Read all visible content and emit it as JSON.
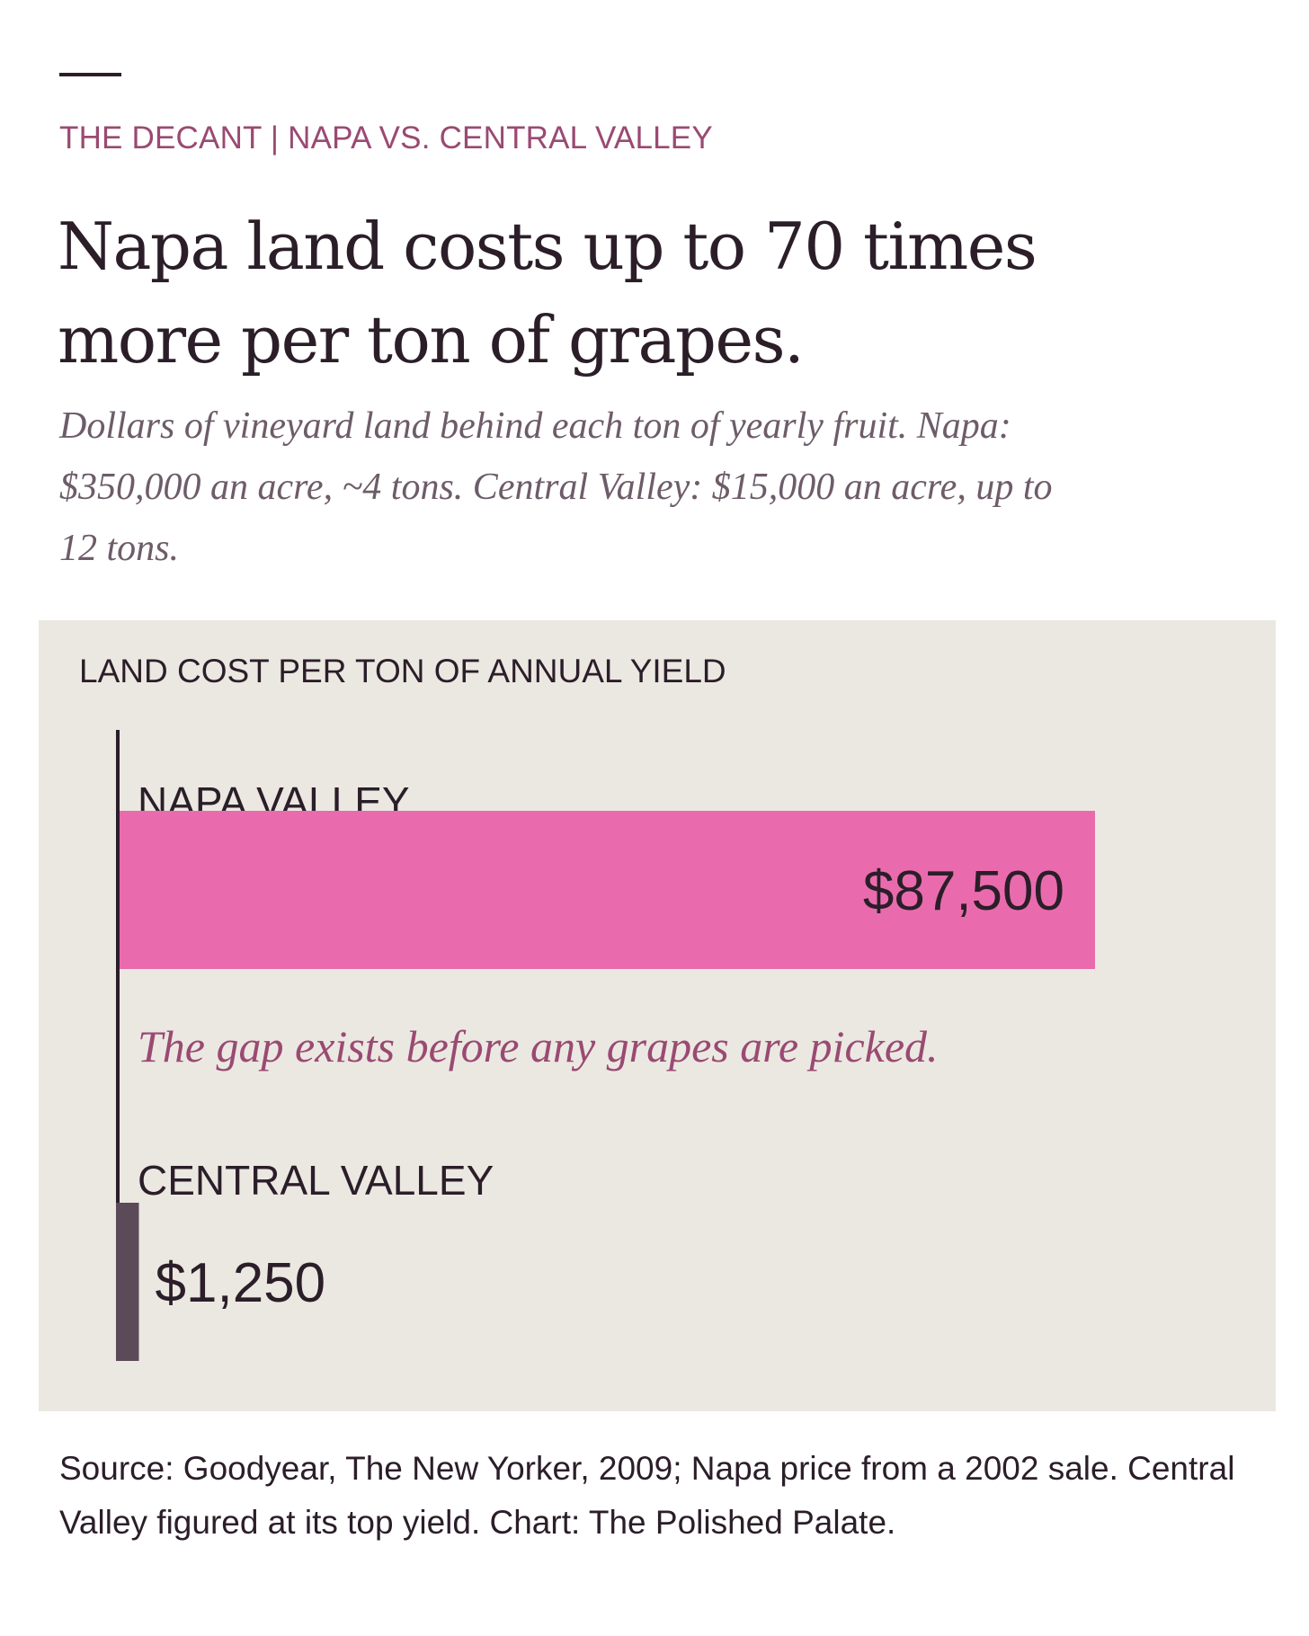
{
  "kicker": "THE DECANT | NAPA VS. CENTRAL VALLEY",
  "headline": "Napa land costs up to 70 times more per ton of grapes.",
  "dek": "Dollars of vineyard land behind each ton of yearly fruit. Napa: $350,000 an acre, ~4 tons. Central Valley: $15,000 an acre, up to 12 tons.",
  "source": "Source: Goodyear, The New Yorker, 2009; Napa price from a 2002 sale. Central Valley figured at its top yield. Chart: The Polished Palate.",
  "colors": {
    "accent": "#9a4a72",
    "napa_bar": "#e96bae",
    "central_bar": "#5b4a58",
    "panel_bg": "#ebe8e2",
    "ink": "#2b1e29"
  },
  "chart_data": {
    "type": "bar",
    "orientation": "horizontal",
    "title": "LAND COST PER TON OF ANNUAL YIELD",
    "categories": [
      "NAPA VALLEY",
      "CENTRAL VALLEY"
    ],
    "values": [
      87500,
      1250
    ],
    "value_labels": [
      "$87,500",
      "$1,250"
    ],
    "xlim": [
      0,
      87500
    ],
    "grid": false,
    "legend": "none",
    "annotation": "The gap exists before any grapes are picked."
  }
}
